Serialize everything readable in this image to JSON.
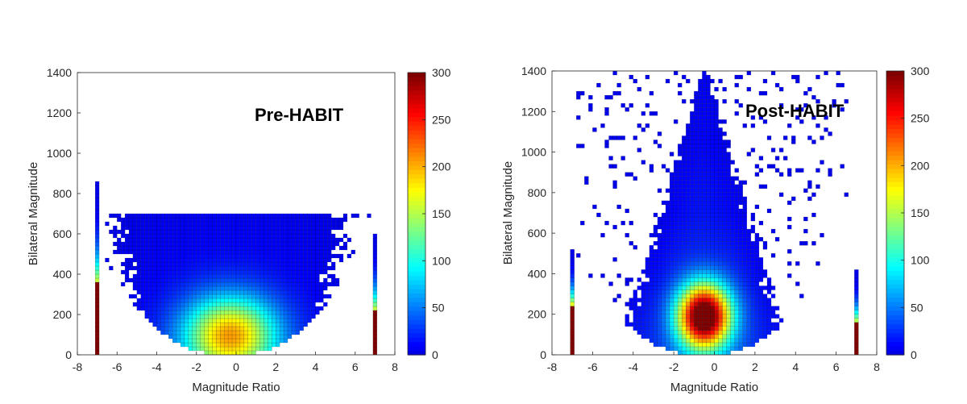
{
  "chart_data": [
    {
      "type": "heatmap",
      "annotation": "Pre-HABIT",
      "xlabel": "Magnitude Ratio",
      "ylabel": "Bilateral Magnitude",
      "xlim": [
        -8,
        8
      ],
      "ylim": [
        0,
        1400
      ],
      "xticks": [
        "-8",
        "-6",
        "-4",
        "-2",
        "0",
        "2",
        "4",
        "6",
        "8"
      ],
      "yticks": [
        "0",
        "200",
        "400",
        "600",
        "800",
        "1000",
        "1200",
        "1400"
      ],
      "colorbar": {
        "min": 0,
        "max": 300,
        "ticks": [
          "0",
          "50",
          "100",
          "150",
          "200",
          "250",
          "300"
        ]
      },
      "colormap": "jet",
      "grid": false,
      "density": {
        "center": [
          -0.3,
          100
        ],
        "peak": 180,
        "spread_x": 1.6,
        "spread_y": 130,
        "cup_half_width_at_y0": 4.6,
        "cup_half_width_at_600": 6.0,
        "max_extent_y": 700
      },
      "edge_columns": [
        {
          "x": -7,
          "y_top": 850,
          "saturated_below": 350
        },
        {
          "x": 7,
          "y_top": 600,
          "saturated_below": 210
        }
      ]
    },
    {
      "type": "heatmap",
      "annotation": "Post-HABIT",
      "xlabel": "Magnitude Ratio",
      "ylabel": "Bilateral Magnitude",
      "xlim": [
        -8,
        8
      ],
      "ylim": [
        0,
        1400
      ],
      "xticks": [
        "-8",
        "-6",
        "-4",
        "-2",
        "0",
        "2",
        "4",
        "6",
        "8"
      ],
      "yticks": [
        "0",
        "200",
        "400",
        "600",
        "800",
        "1000",
        "1200",
        "1400"
      ],
      "colorbar": {
        "min": 0,
        "max": 300,
        "ticks": [
          "0",
          "50",
          "100",
          "150",
          "200",
          "250",
          "300"
        ]
      },
      "colormap": "jet",
      "grid": false,
      "density": {
        "center": [
          -0.5,
          190
        ],
        "peak": 320,
        "spread_x": 0.9,
        "spread_y": 110,
        "cup_half_width_at_y0": 4.5,
        "cup_half_width_at_600": 2.6,
        "max_extent_y": 1400
      },
      "edge_columns": [
        {
          "x": -7,
          "y_top": 520,
          "saturated_below": 240
        },
        {
          "x": 7,
          "y_top": 420,
          "saturated_below": 150
        }
      ]
    }
  ]
}
